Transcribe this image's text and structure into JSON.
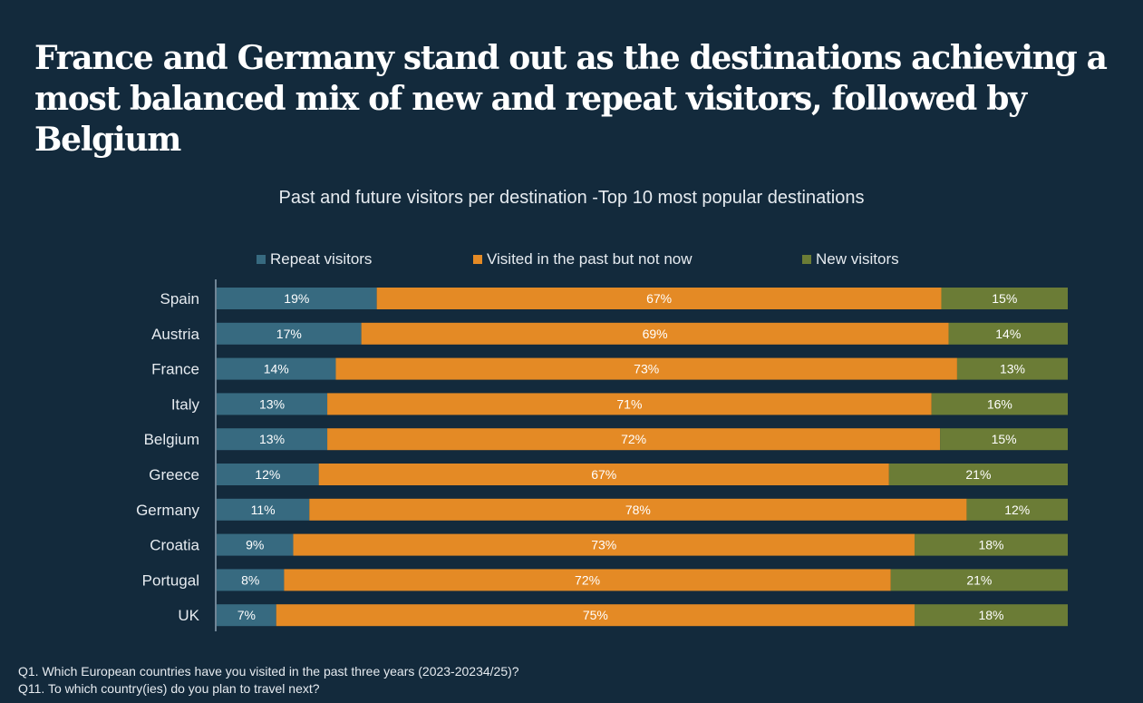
{
  "page": {
    "headline": "France and Germany stand out as the destinations achieving a most balanced mix of new and repeat visitors, followed by Belgium",
    "footnotes": [
      "Q1. Which European countries have you visited in the past three years (2023-20234/25)?",
      "Q11. To which country(ies) do you plan to travel next?"
    ]
  },
  "chart_data": {
    "type": "bar",
    "orientation": "horizontal",
    "stacked": true,
    "title": "Past and future visitors per destination -Top 10 most popular destinations",
    "legend_position": "top",
    "grid": false,
    "categories": [
      "Spain",
      "Austria",
      "France",
      "Italy",
      "Belgium",
      "Greece",
      "Germany",
      "Croatia",
      "Portugal",
      "UK"
    ],
    "series": [
      {
        "name": "Repeat visitors",
        "color": "#376a80",
        "values": [
          19,
          17,
          14,
          13,
          13,
          12,
          11,
          9,
          8,
          7
        ]
      },
      {
        "name": "Visited in the past but not now",
        "color": "#e48a25",
        "values": [
          67,
          69,
          73,
          71,
          72,
          67,
          78,
          73,
          72,
          75
        ]
      },
      {
        "name": "New visitors",
        "color": "#6b7c36",
        "values": [
          15,
          14,
          13,
          16,
          15,
          21,
          12,
          18,
          21,
          18
        ]
      }
    ],
    "value_suffix": "%"
  }
}
